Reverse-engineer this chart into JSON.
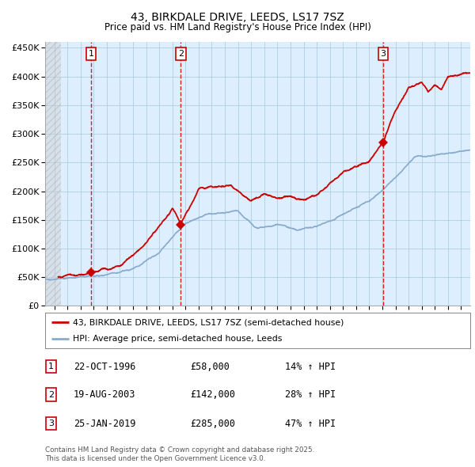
{
  "title": "43, BIRKDALE DRIVE, LEEDS, LS17 7SZ",
  "subtitle": "Price paid vs. HM Land Registry's House Price Index (HPI)",
  "legend_line1": "43, BIRKDALE DRIVE, LEEDS, LS17 7SZ (semi-detached house)",
  "legend_line2": "HPI: Average price, semi-detached house, Leeds",
  "footer_line1": "Contains HM Land Registry data © Crown copyright and database right 2025.",
  "footer_line2": "This data is licensed under the Open Government Licence v3.0.",
  "sale_labels": [
    "1",
    "2",
    "3"
  ],
  "sale_dates": [
    "22-OCT-1996",
    "19-AUG-2003",
    "25-JAN-2019"
  ],
  "sale_prices_str": [
    "£58,000",
    "£142,000",
    "£285,000"
  ],
  "sale_hpi": [
    "14% ↑ HPI",
    "28% ↑ HPI",
    "47% ↑ HPI"
  ],
  "sale_years": [
    1996.81,
    2003.64,
    2019.07
  ],
  "sale_prices": [
    58000,
    142000,
    285000
  ],
  "red_line_color": "#cc0000",
  "blue_line_color": "#88aacc",
  "hatch_color": "#cccccc",
  "grid_color": "#b0cce0",
  "plot_bg_color": "#ddeeff",
  "ylim": [
    0,
    460000
  ],
  "yticks": [
    0,
    50000,
    100000,
    150000,
    200000,
    250000,
    300000,
    350000,
    400000,
    450000
  ],
  "xlim_start": 1993.3,
  "xlim_end": 2025.7,
  "hatch_end": 1994.5,
  "title_fontsize": 10,
  "subtitle_fontsize": 8.5
}
